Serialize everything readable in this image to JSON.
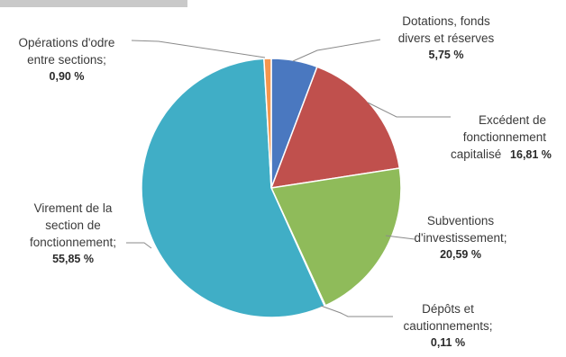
{
  "chart_data": {
    "type": "pie",
    "title": "",
    "colors": {
      "dotations": "#4a78c0",
      "excedent": "#c0504d",
      "subventions": "#8fbb5a",
      "depots": "#9c8bbf",
      "virement": "#40aec6",
      "operations": "#f5964d"
    },
    "slices": [
      {
        "key": "dotations",
        "line1": "Dotations, fonds",
        "line2": "divers et réserves",
        "line3": "",
        "value_text": "5,75 %",
        "value": 5.75
      },
      {
        "key": "excedent",
        "line1": "Excédent de",
        "line2": "fonctionnement",
        "line3": "capitalisé",
        "value_text": "16,81 %",
        "value": 16.81
      },
      {
        "key": "subventions",
        "line1": "Subventions",
        "line2": "d'investissement;",
        "line3": "",
        "value_text": "20,59 %",
        "value": 20.59
      },
      {
        "key": "depots",
        "line1": "Dépôts et",
        "line2": "cautionnements;",
        "line3": "",
        "value_text": "0,11 %",
        "value": 0.11
      },
      {
        "key": "virement",
        "line1": "Virement de la",
        "line2": "section de",
        "line3": "fonctionnement;",
        "value_text": "55,85 %",
        "value": 55.85
      },
      {
        "key": "operations",
        "line1": "Opérations d'odre",
        "line2": "entre sections;",
        "line3": "",
        "value_text": "0,90 %",
        "value": 0.9
      }
    ]
  }
}
